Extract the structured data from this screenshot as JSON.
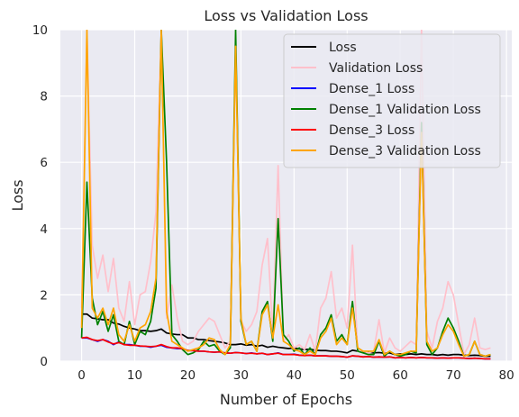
{
  "chart_data": {
    "type": "line",
    "title": "Loss vs Validation Loss",
    "xlabel": "Number of Epochs",
    "ylabel": "Loss",
    "xlim": [
      -4,
      81
    ],
    "ylim": [
      0,
      10
    ],
    "xticks": [
      0,
      10,
      20,
      30,
      40,
      50,
      60,
      70,
      80
    ],
    "yticks": [
      0,
      2,
      4,
      6,
      8,
      10
    ],
    "grid": true,
    "legend_position": "top-right",
    "x": [
      0,
      1,
      2,
      3,
      4,
      5,
      6,
      7,
      8,
      9,
      10,
      11,
      12,
      13,
      14,
      15,
      16,
      17,
      18,
      19,
      20,
      21,
      22,
      23,
      24,
      25,
      26,
      27,
      28,
      29,
      30,
      31,
      32,
      33,
      34,
      35,
      36,
      37,
      38,
      39,
      40,
      41,
      42,
      43,
      44,
      45,
      46,
      47,
      48,
      49,
      50,
      51,
      52,
      53,
      54,
      55,
      56,
      57,
      58,
      59,
      60,
      61,
      62,
      63,
      64,
      65,
      66,
      67,
      68,
      69,
      70,
      71,
      72,
      73,
      74,
      75,
      76,
      77
    ],
    "series": [
      {
        "name": "Loss",
        "color": "#000000",
        "values": [
          1.42,
          1.42,
          1.3,
          1.28,
          1.25,
          1.25,
          1.15,
          1.12,
          1.05,
          1.0,
          0.97,
          0.92,
          0.92,
          0.9,
          0.92,
          0.97,
          0.85,
          0.82,
          0.8,
          0.8,
          0.7,
          0.7,
          0.65,
          0.65,
          0.62,
          0.6,
          0.58,
          0.55,
          0.5,
          0.5,
          0.52,
          0.48,
          0.5,
          0.45,
          0.48,
          0.42,
          0.45,
          0.42,
          0.4,
          0.38,
          0.4,
          0.37,
          0.35,
          0.36,
          0.33,
          0.32,
          0.32,
          0.3,
          0.3,
          0.28,
          0.25,
          0.33,
          0.3,
          0.26,
          0.27,
          0.25,
          0.26,
          0.24,
          0.25,
          0.2,
          0.22,
          0.2,
          0.22,
          0.2,
          0.22,
          0.2,
          0.2,
          0.18,
          0.2,
          0.18,
          0.2,
          0.2,
          0.18,
          0.17,
          0.18,
          0.17,
          0.15,
          0.15
        ]
      },
      {
        "name": "Validation Loss",
        "color": "#ffc0cb",
        "values": [
          1.6,
          10.0,
          3.5,
          2.5,
          3.2,
          2.1,
          3.1,
          1.6,
          1.2,
          2.4,
          1.1,
          2.0,
          2.1,
          3.0,
          4.5,
          10.0,
          1.3,
          2.3,
          1.3,
          0.6,
          0.5,
          0.6,
          0.9,
          1.1,
          1.3,
          1.2,
          0.8,
          0.4,
          0.6,
          9.6,
          1.2,
          0.9,
          1.1,
          1.5,
          2.9,
          3.7,
          0.8,
          5.9,
          0.6,
          0.8,
          0.4,
          0.5,
          0.35,
          0.8,
          0.3,
          1.6,
          1.9,
          2.7,
          1.3,
          1.6,
          1.0,
          3.5,
          0.3,
          0.3,
          0.25,
          0.3,
          1.25,
          0.25,
          0.7,
          0.4,
          0.3,
          0.45,
          0.6,
          0.5,
          10.0,
          0.9,
          0.4,
          1.2,
          1.6,
          2.4,
          2.0,
          1.1,
          0.2,
          0.5,
          1.3,
          0.4,
          0.35,
          0.4
        ]
      },
      {
        "name": "Dense_1 Loss",
        "color": "#0000ff",
        "values": [
          0.7,
          0.7,
          0.65,
          0.6,
          0.65,
          0.6,
          0.5,
          0.58,
          0.5,
          0.5,
          0.48,
          0.45,
          0.45,
          0.42,
          0.45,
          0.48,
          0.42,
          0.4,
          0.38,
          0.38,
          0.32,
          0.32,
          0.3,
          0.3,
          0.28,
          0.27,
          0.28,
          0.25,
          0.24,
          0.26,
          0.25,
          0.23,
          0.25,
          0.22,
          0.24,
          0.2,
          0.22,
          0.25,
          0.2,
          0.2,
          0.21,
          0.18,
          0.17,
          0.18,
          0.16,
          0.16,
          0.16,
          0.15,
          0.15,
          0.14,
          0.12,
          0.16,
          0.15,
          0.13,
          0.14,
          0.12,
          0.13,
          0.12,
          0.13,
          0.1,
          0.11,
          0.1,
          0.11,
          0.1,
          0.11,
          0.1,
          0.1,
          0.09,
          0.1,
          0.09,
          0.1,
          0.1,
          0.09,
          0.08,
          0.09,
          0.08,
          0.07,
          0.07
        ]
      },
      {
        "name": "Dense_1 Validation Loss",
        "color": "#008000",
        "values": [
          0.7,
          5.4,
          1.9,
          1.1,
          1.5,
          0.9,
          1.4,
          0.6,
          0.5,
          1.2,
          0.5,
          0.9,
          0.8,
          1.2,
          2.2,
          10.0,
          6.0,
          0.8,
          0.6,
          0.35,
          0.2,
          0.25,
          0.35,
          0.6,
          0.45,
          0.5,
          0.3,
          0.2,
          0.4,
          10.0,
          1.2,
          0.5,
          0.6,
          0.3,
          1.5,
          1.8,
          0.6,
          4.3,
          0.8,
          0.6,
          0.3,
          0.4,
          0.2,
          0.4,
          0.2,
          0.8,
          1.0,
          1.4,
          0.6,
          0.8,
          0.5,
          1.8,
          0.3,
          0.25,
          0.2,
          0.2,
          0.6,
          0.15,
          0.3,
          0.2,
          0.15,
          0.2,
          0.3,
          0.25,
          7.2,
          0.5,
          0.2,
          0.4,
          0.9,
          1.3,
          1.0,
          0.6,
          0.15,
          0.2,
          0.6,
          0.2,
          0.15,
          0.2
        ]
      },
      {
        "name": "Dense_3 Loss",
        "color": "#ff0000",
        "values": [
          0.7,
          0.72,
          0.65,
          0.62,
          0.65,
          0.58,
          0.52,
          0.56,
          0.5,
          0.48,
          0.48,
          0.46,
          0.45,
          0.44,
          0.45,
          0.5,
          0.44,
          0.4,
          0.4,
          0.38,
          0.32,
          0.32,
          0.3,
          0.3,
          0.28,
          0.27,
          0.28,
          0.25,
          0.24,
          0.26,
          0.25,
          0.23,
          0.24,
          0.22,
          0.24,
          0.2,
          0.22,
          0.24,
          0.2,
          0.2,
          0.2,
          0.18,
          0.17,
          0.18,
          0.16,
          0.16,
          0.16,
          0.15,
          0.15,
          0.14,
          0.12,
          0.16,
          0.15,
          0.13,
          0.14,
          0.12,
          0.13,
          0.12,
          0.13,
          0.1,
          0.11,
          0.1,
          0.11,
          0.1,
          0.11,
          0.1,
          0.1,
          0.09,
          0.1,
          0.09,
          0.1,
          0.1,
          0.09,
          0.08,
          0.09,
          0.08,
          0.07,
          0.07
        ]
      },
      {
        "name": "Dense_3 Validation Loss",
        "color": "#ffa500",
        "values": [
          1.0,
          10.0,
          1.6,
          1.3,
          1.6,
          1.1,
          1.6,
          0.8,
          0.6,
          1.1,
          0.6,
          1.0,
          1.1,
          1.5,
          2.5,
          10.0,
          1.5,
          0.6,
          0.5,
          0.4,
          0.3,
          0.35,
          0.4,
          0.5,
          0.7,
          0.65,
          0.35,
          0.2,
          0.5,
          9.5,
          1.3,
          0.5,
          0.6,
          0.3,
          1.4,
          1.7,
          0.7,
          1.7,
          0.6,
          0.5,
          0.35,
          0.3,
          0.2,
          0.3,
          0.2,
          0.7,
          0.9,
          1.3,
          0.5,
          0.7,
          0.5,
          1.6,
          0.4,
          0.3,
          0.3,
          0.3,
          0.65,
          0.2,
          0.3,
          0.2,
          0.2,
          0.25,
          0.3,
          0.3,
          6.9,
          0.6,
          0.3,
          0.4,
          0.8,
          1.1,
          0.9,
          0.5,
          0.15,
          0.2,
          0.6,
          0.2,
          0.15,
          0.2
        ]
      }
    ]
  }
}
